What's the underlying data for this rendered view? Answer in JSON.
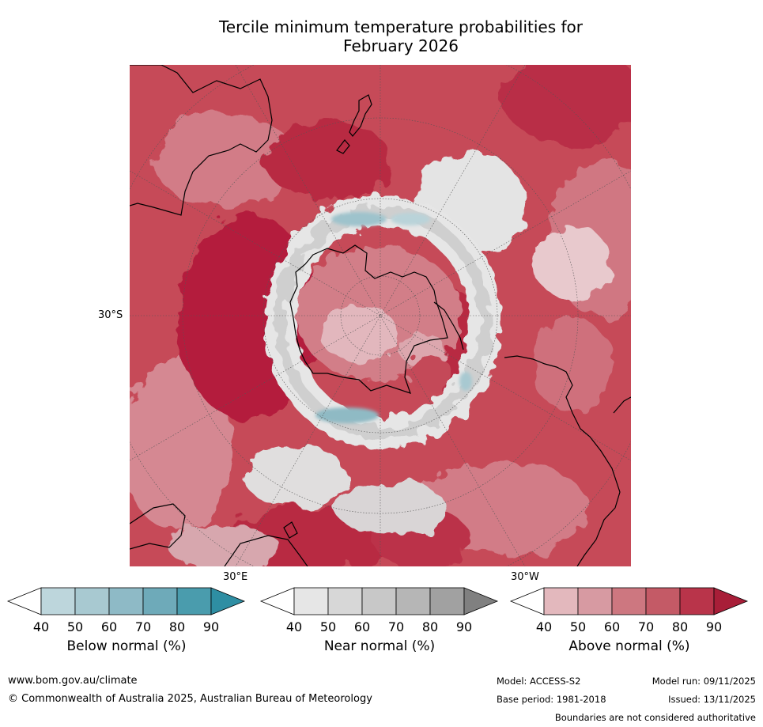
{
  "title_line1": "Tercile minimum temperature probabilities for",
  "title_line2": "February 2026",
  "map": {
    "lat_label": "30°S",
    "lon_labels": [
      "30°E",
      "30°W"
    ]
  },
  "legends": [
    {
      "label": "Below normal (%)",
      "ticks": [
        "40",
        "50",
        "60",
        "70",
        "80",
        "90"
      ],
      "colors": [
        "#ffffff",
        "#bdd6dc",
        "#a8c9d1",
        "#8ebac6",
        "#6eaab9",
        "#4a9cad",
        "#2e8ea3"
      ]
    },
    {
      "label": "Near normal (%)",
      "ticks": [
        "40",
        "50",
        "60",
        "70",
        "80",
        "90"
      ],
      "colors": [
        "#ffffff",
        "#e6e6e6",
        "#d7d7d7",
        "#c8c8c8",
        "#b6b6b6",
        "#a1a1a1",
        "#808080"
      ]
    },
    {
      "label": "Above normal (%)",
      "ticks": [
        "40",
        "50",
        "60",
        "70",
        "80",
        "90"
      ],
      "colors": [
        "#ffffff",
        "#e3b8bd",
        "#d79aa2",
        "#cd7780",
        "#c45a66",
        "#b9344a",
        "#a81e38"
      ]
    }
  ],
  "footer": {
    "website": "www.bom.gov.au/climate",
    "copyright": "© Commonwealth of Australia 2025, Australian Bureau of Meteorology",
    "model": "Model: ACCESS-S2",
    "base_period": "Base period: 1981-2018",
    "model_run": "Model run: 09/11/2025",
    "issued": "Issued: 13/11/2025",
    "disclaimer": "Boundaries are not considered authoritative"
  }
}
